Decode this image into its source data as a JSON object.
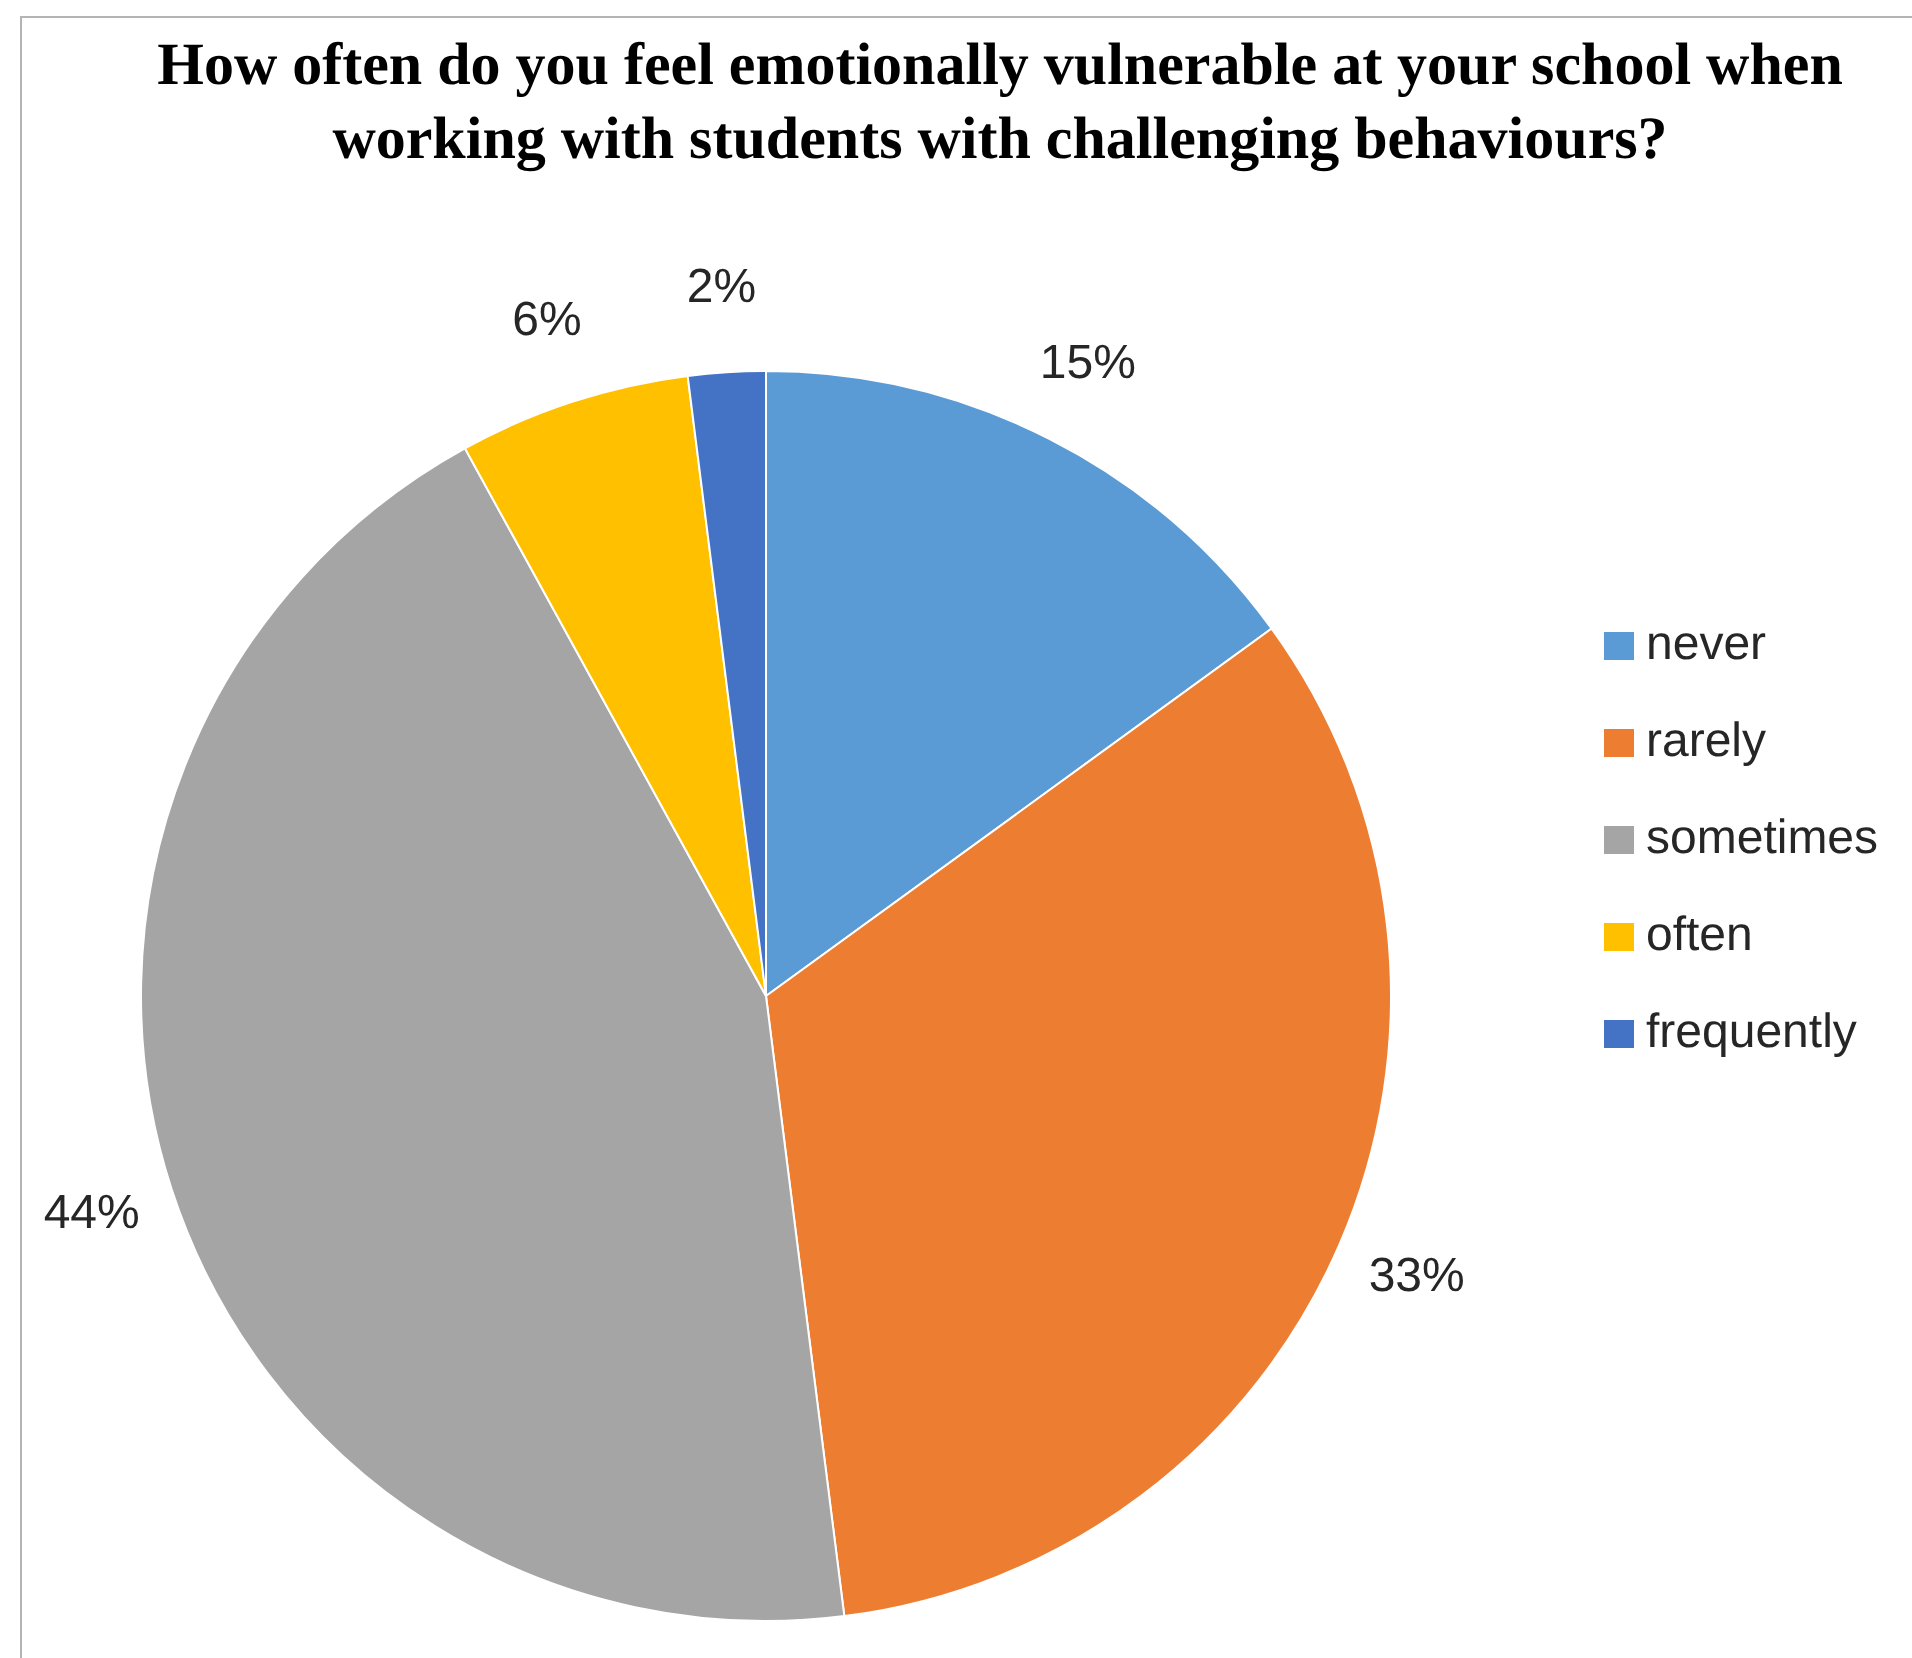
{
  "chart_data": {
    "type": "pie",
    "title": "How often do you feel emotionally vulnerable at your school when working with students with challenging behaviours?",
    "categories": [
      "never",
      "rarely",
      "sometimes",
      "often",
      "frequently"
    ],
    "values": [
      15,
      33,
      44,
      6,
      2
    ],
    "colors": [
      "#5b9bd5",
      "#ed7d31",
      "#a5a5a5",
      "#ffc000",
      "#4472c4"
    ],
    "value_labels": [
      "15%",
      "33%",
      "44%",
      "6%",
      "2%"
    ],
    "legend": "right"
  }
}
